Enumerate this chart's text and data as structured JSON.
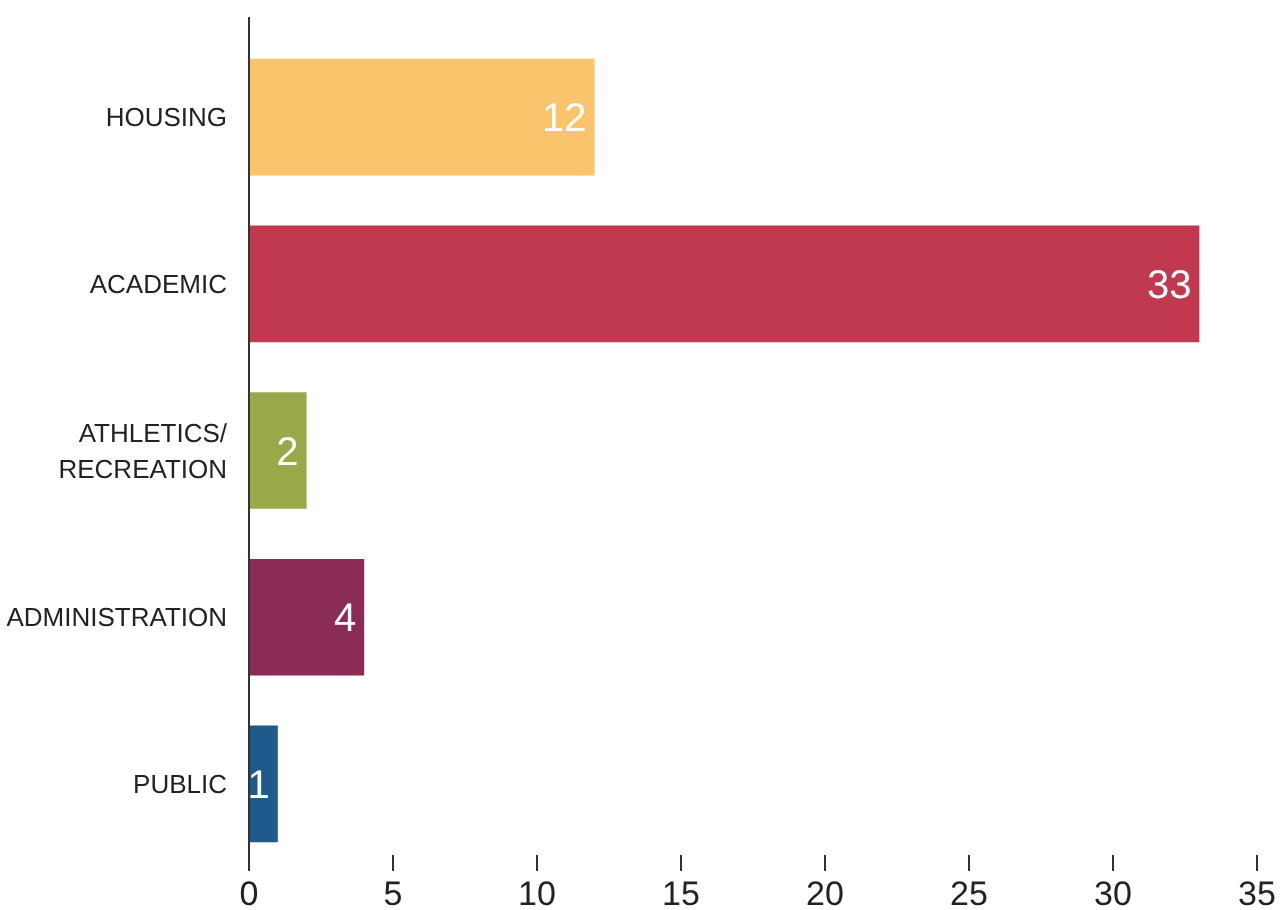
{
  "chart_data": {
    "type": "bar",
    "orientation": "horizontal",
    "categories": [
      "HOUSING",
      "ACADEMIC",
      "ATHLETICS/\nRECREATION",
      "ADMINISTRATION",
      "PUBLIC"
    ],
    "values": [
      12,
      33,
      2,
      4,
      1
    ],
    "colors": [
      "#f9c46b",
      "#c0394f",
      "#9aa84a",
      "#8b2c55",
      "#1f5a8c"
    ],
    "xlim": [
      0,
      35
    ],
    "xticks": [
      0,
      5,
      10,
      15,
      20,
      25,
      30,
      35
    ],
    "grid": false,
    "data_labels": true
  }
}
